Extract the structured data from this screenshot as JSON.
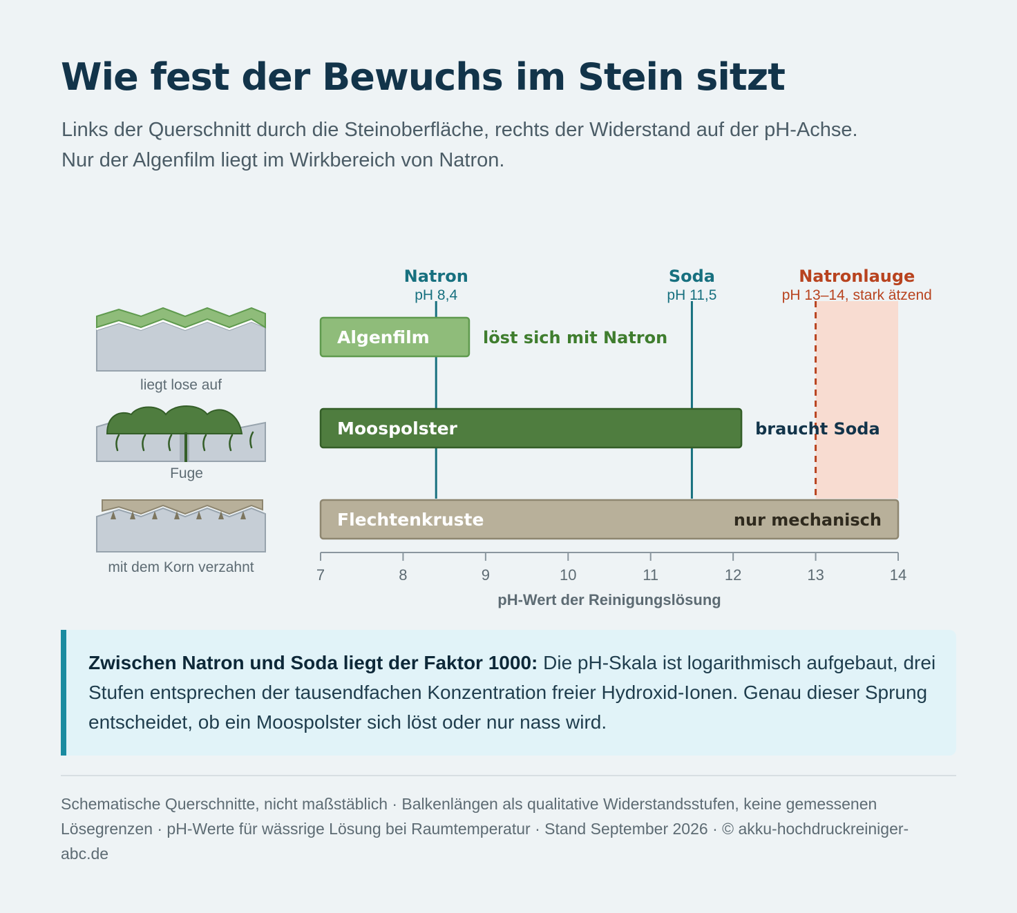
{
  "header": {
    "title": "Wie fest der Bewuchs im Stein sitzt",
    "subtitle_line1": "Links der Querschnitt durch die Steinoberfläche, rechts der Widerstand auf der pH-Achse.",
    "subtitle_line2": "Nur der Algenfilm liegt im Wirkbereich von Natron."
  },
  "cross_sections": [
    {
      "caption": "liegt lose auf",
      "type": "algae"
    },
    {
      "caption": "Fuge",
      "type": "moss"
    },
    {
      "caption": "mit dem Korn verzahnt",
      "type": "lichen"
    }
  ],
  "chart_data": {
    "type": "bar",
    "xlabel": "pH-Wert der Reinigungslösung",
    "xlim": [
      7,
      14
    ],
    "xticks": [
      7,
      8,
      9,
      10,
      11,
      12,
      13,
      14
    ],
    "markers": [
      {
        "name": "Natron",
        "sublabel": "pH 8,4",
        "ph": 8.4,
        "color": "#17707f",
        "style": "solid"
      },
      {
        "name": "Soda",
        "sublabel": "pH 11,5",
        "ph": 11.5,
        "color": "#17707f",
        "style": "solid"
      },
      {
        "name": "Natronlauge",
        "sublabel": "pH 13–14, stark ätzend",
        "ph": 13,
        "color": "#b8431f",
        "style": "dashed",
        "zone": [
          13,
          14
        ],
        "zone_color": "#f8dcd1"
      }
    ],
    "bars": [
      {
        "label": "Algenfilm",
        "start": 7,
        "end": 8.8,
        "annotation": "löst sich mit Natron",
        "fill": "#8fbc7a",
        "stroke": "#5f9a4e",
        "annotation_color": "#3f7d2e",
        "annotation_inside": false
      },
      {
        "label": "Moospolster",
        "start": 7,
        "end": 12.1,
        "annotation": "braucht Soda",
        "fill": "#4f7d3f",
        "stroke": "#345e28",
        "annotation_color": "#12344a",
        "annotation_inside": false
      },
      {
        "label": "Flechtenkruste",
        "start": 7,
        "end": 14,
        "annotation": "nur mechanisch",
        "fill": "#b8b09a",
        "stroke": "#8e8670",
        "annotation_color": "#2f2a1e",
        "annotation_inside": true
      }
    ]
  },
  "callout": {
    "bold": "Zwischen Natron und Soda liegt der Faktor 1000:",
    "text": " Die pH-Skala ist logarithmisch aufgebaut, drei Stufen entsprechen der tausendfachen Konzentration freier Hydroxid-Ionen. Genau dieser Sprung entscheidet, ob ein Moospolster sich löst oder nur nass wird."
  },
  "footer": {
    "text": "Schematische Querschnitte, nicht maßstäblich · Balkenlängen als qualitative Widerstandsstufen, keine gemessenen Lösegrenzen · pH-Werte für wässrige Lösung bei Raumtemperatur · Stand September 2026 · © akku-hochdruckreiniger-abc.de"
  }
}
